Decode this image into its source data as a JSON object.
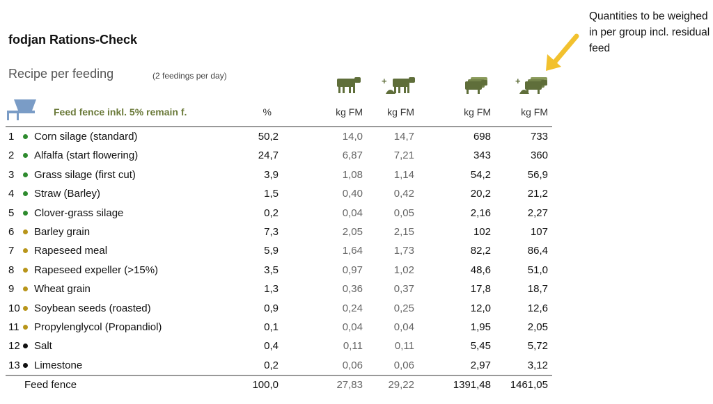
{
  "app_title": "fodjan Rations-Check",
  "annotation": "Quantities to be weighed in per group incl. residual feed",
  "recipe": {
    "title": "Recipe per feeding",
    "subtitle": "(2 feedings per day)"
  },
  "fence_label": "Feed fence inkl. 5% remain f.",
  "headers": {
    "pct": "%",
    "kg1": "kg FM",
    "kg2": "kg FM",
    "kg3": "kg FM",
    "kg4": "kg FM"
  },
  "colors": {
    "forage_dot": "#2e8b2e",
    "concentrate_dot": "#b8951a",
    "mineral_dot": "#111111",
    "icon_green": "#5f6e3a",
    "arrow": "#f2c12e"
  },
  "rows": [
    {
      "num": "1",
      "dot": "forage",
      "name": "Corn silage (standard)",
      "pct": "50,2",
      "kg1": "14,0",
      "kg2": "14,7",
      "kg3": "698",
      "kg4": "733"
    },
    {
      "num": "2",
      "dot": "forage",
      "name": "Alfalfa (start flowering)",
      "pct": "24,7",
      "kg1": "6,87",
      "kg2": "7,21",
      "kg3": "343",
      "kg4": "360"
    },
    {
      "num": "3",
      "dot": "forage",
      "name": "Grass silage (first cut)",
      "pct": "3,9",
      "kg1": "1,08",
      "kg2": "1,14",
      "kg3": "54,2",
      "kg4": "56,9"
    },
    {
      "num": "4",
      "dot": "forage",
      "name": "Straw (Barley)",
      "pct": "1,5",
      "kg1": "0,40",
      "kg2": "0,42",
      "kg3": "20,2",
      "kg4": "21,2"
    },
    {
      "num": "5",
      "dot": "forage",
      "name": "Clover-grass silage",
      "pct": "0,2",
      "kg1": "0,04",
      "kg2": "0,05",
      "kg3": "2,16",
      "kg4": "2,27"
    },
    {
      "num": "6",
      "dot": "concentrate",
      "name": "Barley grain",
      "pct": "7,3",
      "kg1": "2,05",
      "kg2": "2,15",
      "kg3": "102",
      "kg4": "107"
    },
    {
      "num": "7",
      "dot": "concentrate",
      "name": "Rapeseed meal",
      "pct": "5,9",
      "kg1": "1,64",
      "kg2": "1,73",
      "kg3": "82,2",
      "kg4": "86,4"
    },
    {
      "num": "8",
      "dot": "concentrate",
      "name": "Rapeseed expeller (>15%)",
      "pct": "3,5",
      "kg1": "0,97",
      "kg2": "1,02",
      "kg3": "48,6",
      "kg4": "51,0"
    },
    {
      "num": "9",
      "dot": "concentrate",
      "name": "Wheat grain",
      "pct": "1,3",
      "kg1": "0,36",
      "kg2": "0,37",
      "kg3": "17,8",
      "kg4": "18,7"
    },
    {
      "num": "10",
      "dot": "concentrate",
      "name": "Soybean seeds (roasted)",
      "pct": "0,9",
      "kg1": "0,24",
      "kg2": "0,25",
      "kg3": "12,0",
      "kg4": "12,6"
    },
    {
      "num": "11",
      "dot": "concentrate",
      "name": "Propylenglycol (Propandiol)",
      "pct": "0,1",
      "kg1": "0,04",
      "kg2": "0,04",
      "kg3": "1,95",
      "kg4": "2,05"
    },
    {
      "num": "12",
      "dot": "mineral",
      "name": "Salt",
      "pct": "0,4",
      "kg1": "0,11",
      "kg2": "0,11",
      "kg3": "5,45",
      "kg4": "5,72"
    },
    {
      "num": "13",
      "dot": "mineral",
      "name": "Limestone",
      "pct": "0,2",
      "kg1": "0,06",
      "kg2": "0,06",
      "kg3": "2,97",
      "kg4": "3,12"
    }
  ],
  "total": {
    "name": "Feed fence",
    "pct": "100,0",
    "kg1": "27,83",
    "kg2": "29,22",
    "kg3": "1391,48",
    "kg4": "1461,05"
  }
}
